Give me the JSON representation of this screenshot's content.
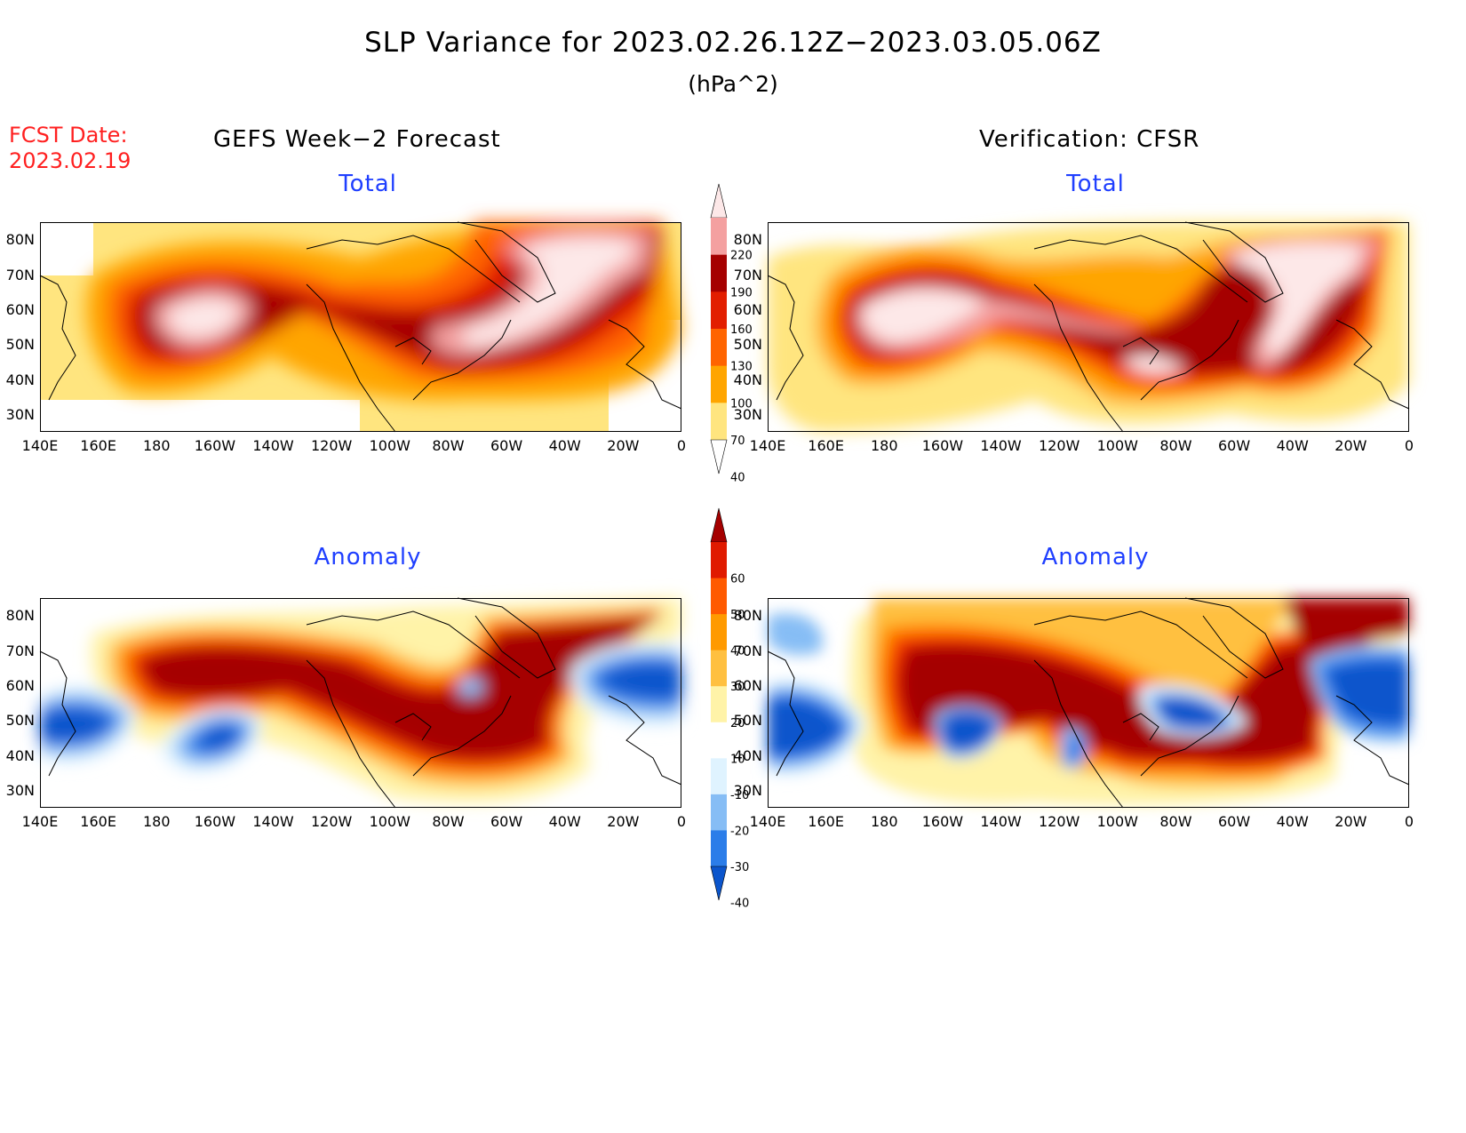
{
  "title": "SLP Variance for 2023.02.26.12Z−2023.03.05.06Z",
  "unit": "(hPa^2)",
  "fcst_label": "FCST Date:",
  "fcst_date": "2023.02.19",
  "col_left": "GEFS Week−2 Forecast",
  "col_right": "Verification: CFSR",
  "panels": {
    "tl": "Total",
    "tr": "Total",
    "bl": "Anomaly",
    "br": "Anomaly"
  },
  "lat_labels": [
    "80N",
    "70N",
    "60N",
    "50N",
    "40N",
    "30N"
  ],
  "lon_labels": [
    "140E",
    "160E",
    "180",
    "160W",
    "140W",
    "120W",
    "100W",
    "80W",
    "60W",
    "40W",
    "20W",
    "0"
  ],
  "colorbar_total": {
    "levels": [
      "40",
      "70",
      "100",
      "130",
      "160",
      "190",
      "220"
    ],
    "colors": [
      "#ffffff",
      "#ffe57f",
      "#ffa500",
      "#ff6400",
      "#e21e00",
      "#a50000",
      "#f4a0a0",
      "#fde8e8"
    ]
  },
  "colorbar_anom": {
    "levels": [
      "-40",
      "-30",
      "-20",
      "-10",
      "10",
      "20",
      "30",
      "40",
      "50",
      "60"
    ],
    "colors": [
      "#0b55cc",
      "#2b7de9",
      "#86bdf5",
      "#dff3ff",
      "#ffffff",
      "#fff3a8",
      "#ffc040",
      "#ff9a00",
      "#ff5a00",
      "#e01a00",
      "#a50000"
    ]
  }
}
